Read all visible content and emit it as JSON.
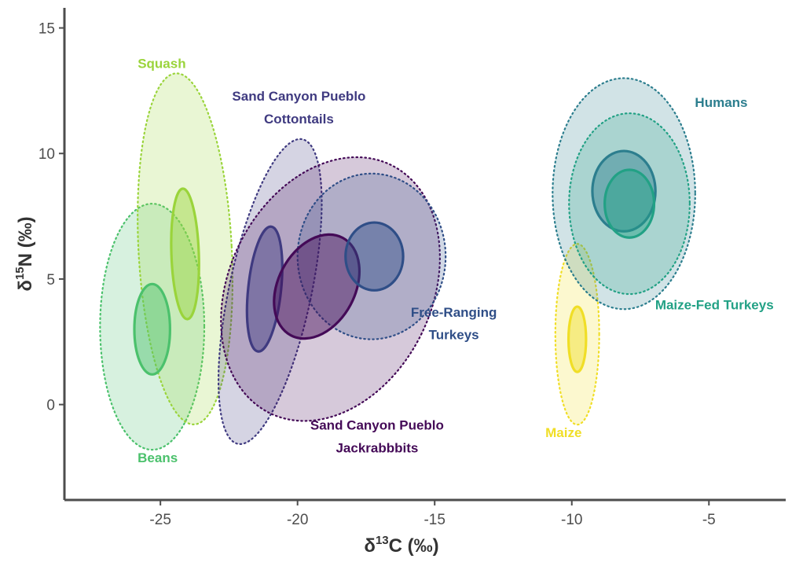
{
  "chart_data": {
    "type": "scatter",
    "subtype": "ellipse-plot",
    "xlabel": {
      "base": "δ",
      "sup": "13",
      "rest": "C (‰)"
    },
    "ylabel": {
      "base": "δ",
      "sup": "15",
      "rest": "N (‰)"
    },
    "xlim": [
      -28.5,
      -2.2
    ],
    "ylim": [
      -3.8,
      15.8
    ],
    "xticks": [
      -25,
      -20,
      -15,
      -10,
      -5
    ],
    "yticks": [
      0,
      5,
      10,
      15
    ],
    "grid": false,
    "legend": "none",
    "series": [
      {
        "name": "Beans",
        "color": "#4bc16c",
        "outer": {
          "cx": -25.3,
          "cy": 3.1,
          "rx": 1.9,
          "ry": 4.9,
          "angle": 0
        },
        "inner": {
          "cx": -25.3,
          "cy": 3.0,
          "rx": 0.65,
          "ry": 1.8,
          "angle": 0
        },
        "label": {
          "text": [
            "Beans"
          ],
          "x": -25.1,
          "y": -2.3
        }
      },
      {
        "name": "Squash",
        "color": "#9ad43b",
        "outer": {
          "cx": -24.1,
          "cy": 6.2,
          "rx": 1.7,
          "ry": 7.0,
          "angle": -3
        },
        "inner": {
          "cx": -24.1,
          "cy": 6.0,
          "rx": 0.5,
          "ry": 2.6,
          "angle": -2
        },
        "label": {
          "text": [
            "Squash"
          ],
          "x": -24.95,
          "y": 13.4
        }
      },
      {
        "name": "Sand Canyon Pueblo Cottontails",
        "color": "#3f3a80",
        "outer": {
          "cx": -21.0,
          "cy": 4.5,
          "rx": 1.5,
          "ry": 6.2,
          "angle": 12
        },
        "inner": {
          "cx": -21.2,
          "cy": 4.6,
          "rx": 0.6,
          "ry": 2.5,
          "angle": 6
        },
        "label": {
          "text": [
            "Sand Canyon Pueblo",
            "Cottontails"
          ],
          "x": -19.95,
          "y": [
            12.1,
            11.2
          ]
        }
      },
      {
        "name": "Sand Canyon Pueblo Jackrabbbits",
        "color": "#440a57",
        "outer": {
          "cx": -18.8,
          "cy": 4.6,
          "rx": 3.7,
          "ry": 5.5,
          "angle": 26
        },
        "inner": {
          "cx": -19.3,
          "cy": 4.7,
          "rx": 1.4,
          "ry": 2.2,
          "angle": 28
        },
        "label": {
          "text": [
            "Sand Canyon Pueblo",
            "Jackrabbbits"
          ],
          "x": -17.1,
          "y": [
            -1.0,
            -1.9
          ]
        }
      },
      {
        "name": "Free-Ranging Turkeys",
        "color": "#2f4e87",
        "outer": {
          "cx": -17.3,
          "cy": 5.9,
          "rx": 2.7,
          "ry": 3.3,
          "angle": 0
        },
        "inner": {
          "cx": -17.2,
          "cy": 5.9,
          "rx": 1.05,
          "ry": 1.35,
          "angle": 0
        },
        "label": {
          "text": [
            "Free-Ranging",
            "Turkeys"
          ],
          "x": -14.3,
          "y": [
            3.5,
            2.6
          ]
        }
      },
      {
        "name": "Maize",
        "color": "#f0de26",
        "outer": {
          "cx": -9.8,
          "cy": 2.8,
          "rx": 0.8,
          "ry": 3.6,
          "angle": 0
        },
        "inner": {
          "cx": -9.8,
          "cy": 2.6,
          "rx": 0.32,
          "ry": 1.3,
          "angle": 0
        },
        "label": {
          "text": [
            "Maize"
          ],
          "x": -10.3,
          "y": -1.3
        }
      },
      {
        "name": "Humans",
        "color": "#2c7e8e",
        "outer": {
          "cx": -8.1,
          "cy": 8.4,
          "rx": 2.6,
          "ry": 4.6,
          "angle": 0
        },
        "inner": {
          "cx": -8.1,
          "cy": 8.5,
          "rx": 1.15,
          "ry": 1.6,
          "angle": 0
        },
        "label": {
          "text": [
            "Humans"
          ],
          "x": -4.55,
          "y": 11.85
        }
      },
      {
        "name": "Maize-Fed Turkeys",
        "color": "#22a185",
        "outer": {
          "cx": -7.9,
          "cy": 8.0,
          "rx": 2.2,
          "ry": 3.6,
          "angle": 0
        },
        "inner": {
          "cx": -7.9,
          "cy": 8.0,
          "rx": 0.9,
          "ry": 1.35,
          "angle": 0
        },
        "label": {
          "text": [
            "Maize-Fed Turkeys"
          ],
          "x": -4.8,
          "y": 3.8
        }
      }
    ]
  }
}
